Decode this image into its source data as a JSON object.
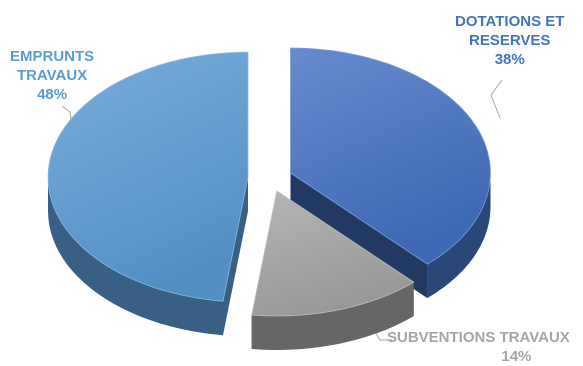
{
  "chart_data": {
    "type": "pie",
    "title": "",
    "slices": [
      {
        "name": "DOTATIONS ET RESERVES",
        "label_lines": [
          "DOTATIONS ET",
          "RESERVES"
        ],
        "value": 38,
        "value_label": "38%",
        "color": "#4472C4",
        "label_color": "#4472C4"
      },
      {
        "name": "SUBVENTIONS TRAVAUX",
        "label_lines": [
          "SUBVENTIONS TRAVAUX"
        ],
        "value": 14,
        "value_label": "14%",
        "color": "#A5A5A5",
        "label_color": "#A5A5A5"
      },
      {
        "name": "EMPRUNTS TRAVAUX",
        "label_lines": [
          "EMPRUNTS",
          "TRAVAUX"
        ],
        "value": 48,
        "value_label": "48%",
        "color": "#5B9BD5",
        "label_color": "#5B9BD5"
      }
    ]
  }
}
